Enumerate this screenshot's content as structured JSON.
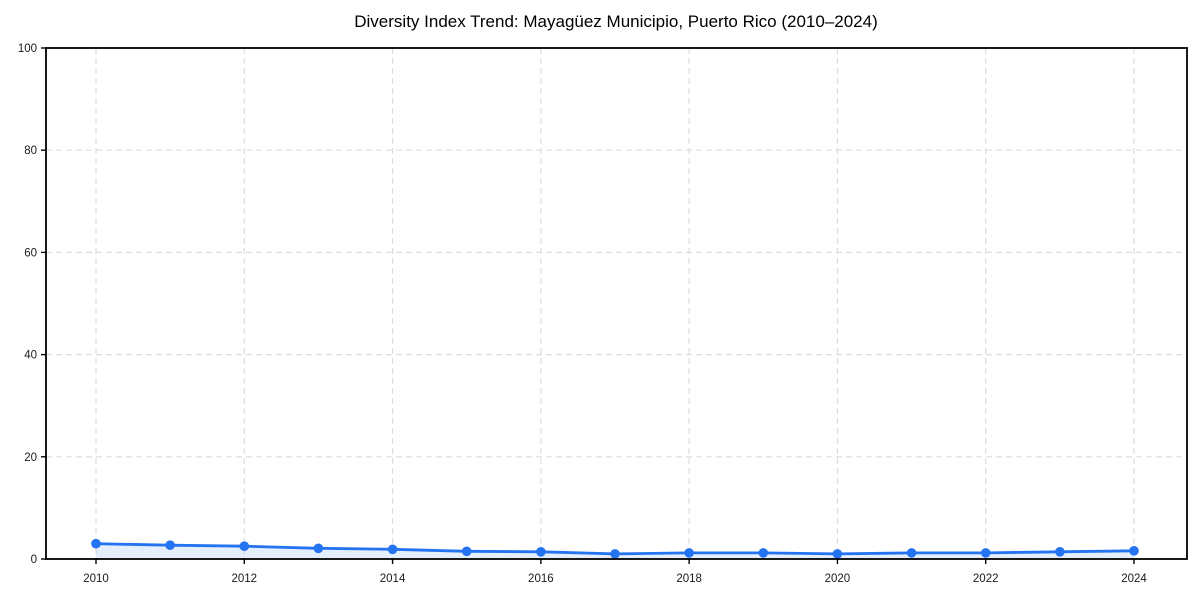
{
  "page": {
    "background_color": "#ffffff"
  },
  "chart_data": {
    "type": "line",
    "title": "Diversity Index Trend: Mayagüez Municipio, Puerto Rico (2010–2024)",
    "x": [
      2010,
      2011,
      2012,
      2013,
      2014,
      2015,
      2016,
      2017,
      2018,
      2019,
      2020,
      2021,
      2022,
      2023,
      2024
    ],
    "series": [
      {
        "name": "Diversity Index",
        "values": [
          3.0,
          2.7,
          2.5,
          2.1,
          1.9,
          1.5,
          1.4,
          1.0,
          1.2,
          1.2,
          1.0,
          1.2,
          1.2,
          1.4,
          1.6
        ]
      }
    ],
    "xlabel": "",
    "ylabel": "",
    "ylim": [
      0,
      100
    ],
    "yticks": [
      0,
      20,
      40,
      60,
      80,
      100
    ],
    "xticks": [
      2010,
      2012,
      2014,
      2016,
      2018,
      2020,
      2022,
      2024
    ],
    "grid": true,
    "grid_style": "dashed",
    "legend_position": "none",
    "marker": "circle",
    "colors": {
      "line": "#2473f0",
      "marker": "#2473f0",
      "area_fill": "#2473f0",
      "area_fill_opacity": 0.12,
      "grid": "#dddddd",
      "axis": "#000000",
      "tick_label": "#1a1a1a",
      "title": "#000000",
      "background": "#ffffff"
    }
  }
}
